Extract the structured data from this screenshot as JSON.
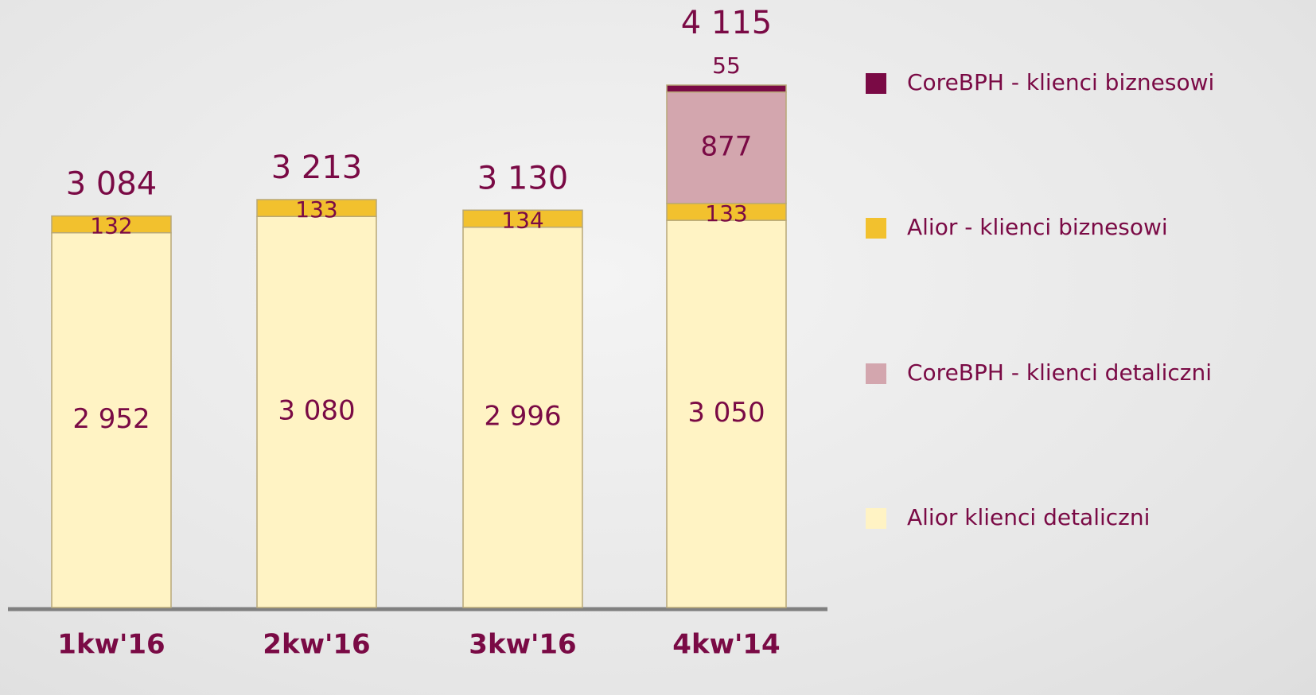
{
  "chart_data": {
    "type": "stacked_bar",
    "categories": [
      "1kw'16",
      "2kw'16",
      "3kw'16",
      "4kw'14"
    ],
    "series": [
      {
        "name": "Alior klienci detaliczni",
        "color": "#fff3c4",
        "values": [
          2952,
          3080,
          2996,
          3050
        ],
        "value_labels": [
          "2 952",
          "3 080",
          "2 996",
          "3 050"
        ]
      },
      {
        "name": "Alior - klienci biznesowi",
        "color": "#f2c12e",
        "values": [
          132,
          133,
          134,
          133
        ]
      },
      {
        "name": "CoreBPH - klienci detaliczni",
        "color": "#d3a6ae",
        "values": [
          null,
          null,
          null,
          877
        ]
      },
      {
        "name": "CoreBPH - klienci biznesowi",
        "color": "#7a0a45",
        "values": [
          null,
          null,
          null,
          55
        ]
      }
    ],
    "totals": [
      3084,
      3213,
      3130,
      4115
    ],
    "total_labels": [
      "3 084",
      "3 213",
      "3 130",
      "4 115"
    ]
  }
}
